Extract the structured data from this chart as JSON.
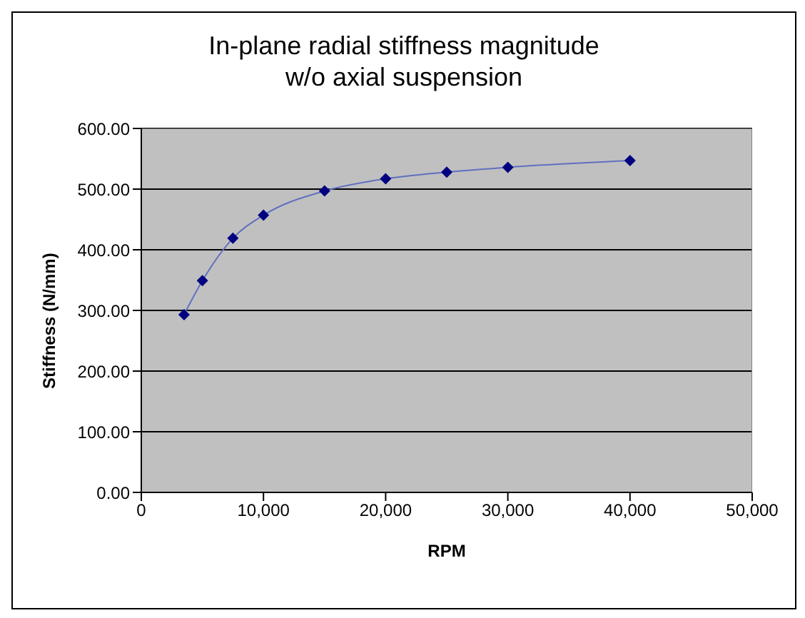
{
  "chart_data": {
    "type": "line",
    "title": "In-plane radial stiffness magnitude\nw/o axial suspension",
    "xlabel": "RPM",
    "ylabel": "Stiffness (N/mm)",
    "x": [
      3500,
      5000,
      7500,
      10000,
      15000,
      20000,
      25000,
      30000,
      40000
    ],
    "series": [
      {
        "color": "#000080",
        "values": [
          293,
          349,
          419,
          457,
          497,
          517,
          528,
          536,
          547
        ]
      }
    ],
    "xlim": [
      0,
      50000
    ],
    "xticks": [
      {
        "value": 0,
        "label": "0"
      },
      {
        "value": 10000,
        "label": "10,000"
      },
      {
        "value": 20000,
        "label": "20,000"
      },
      {
        "value": 30000,
        "label": "30,000"
      },
      {
        "value": 40000,
        "label": "40,000"
      },
      {
        "value": 50000,
        "label": "50,000"
      }
    ],
    "ylim": [
      0,
      600
    ],
    "yticks": [
      {
        "value": 0,
        "label": "0.00"
      },
      {
        "value": 100,
        "label": "100.00"
      },
      {
        "value": 200,
        "label": "200.00"
      },
      {
        "value": 300,
        "label": "300.00"
      },
      {
        "value": 400,
        "label": "400.00"
      },
      {
        "value": 500,
        "label": "500.00"
      },
      {
        "value": 600,
        "label": "600.00"
      }
    ],
    "grid": "y",
    "marker": "diamond",
    "line_style": "solid",
    "legend": false
  }
}
